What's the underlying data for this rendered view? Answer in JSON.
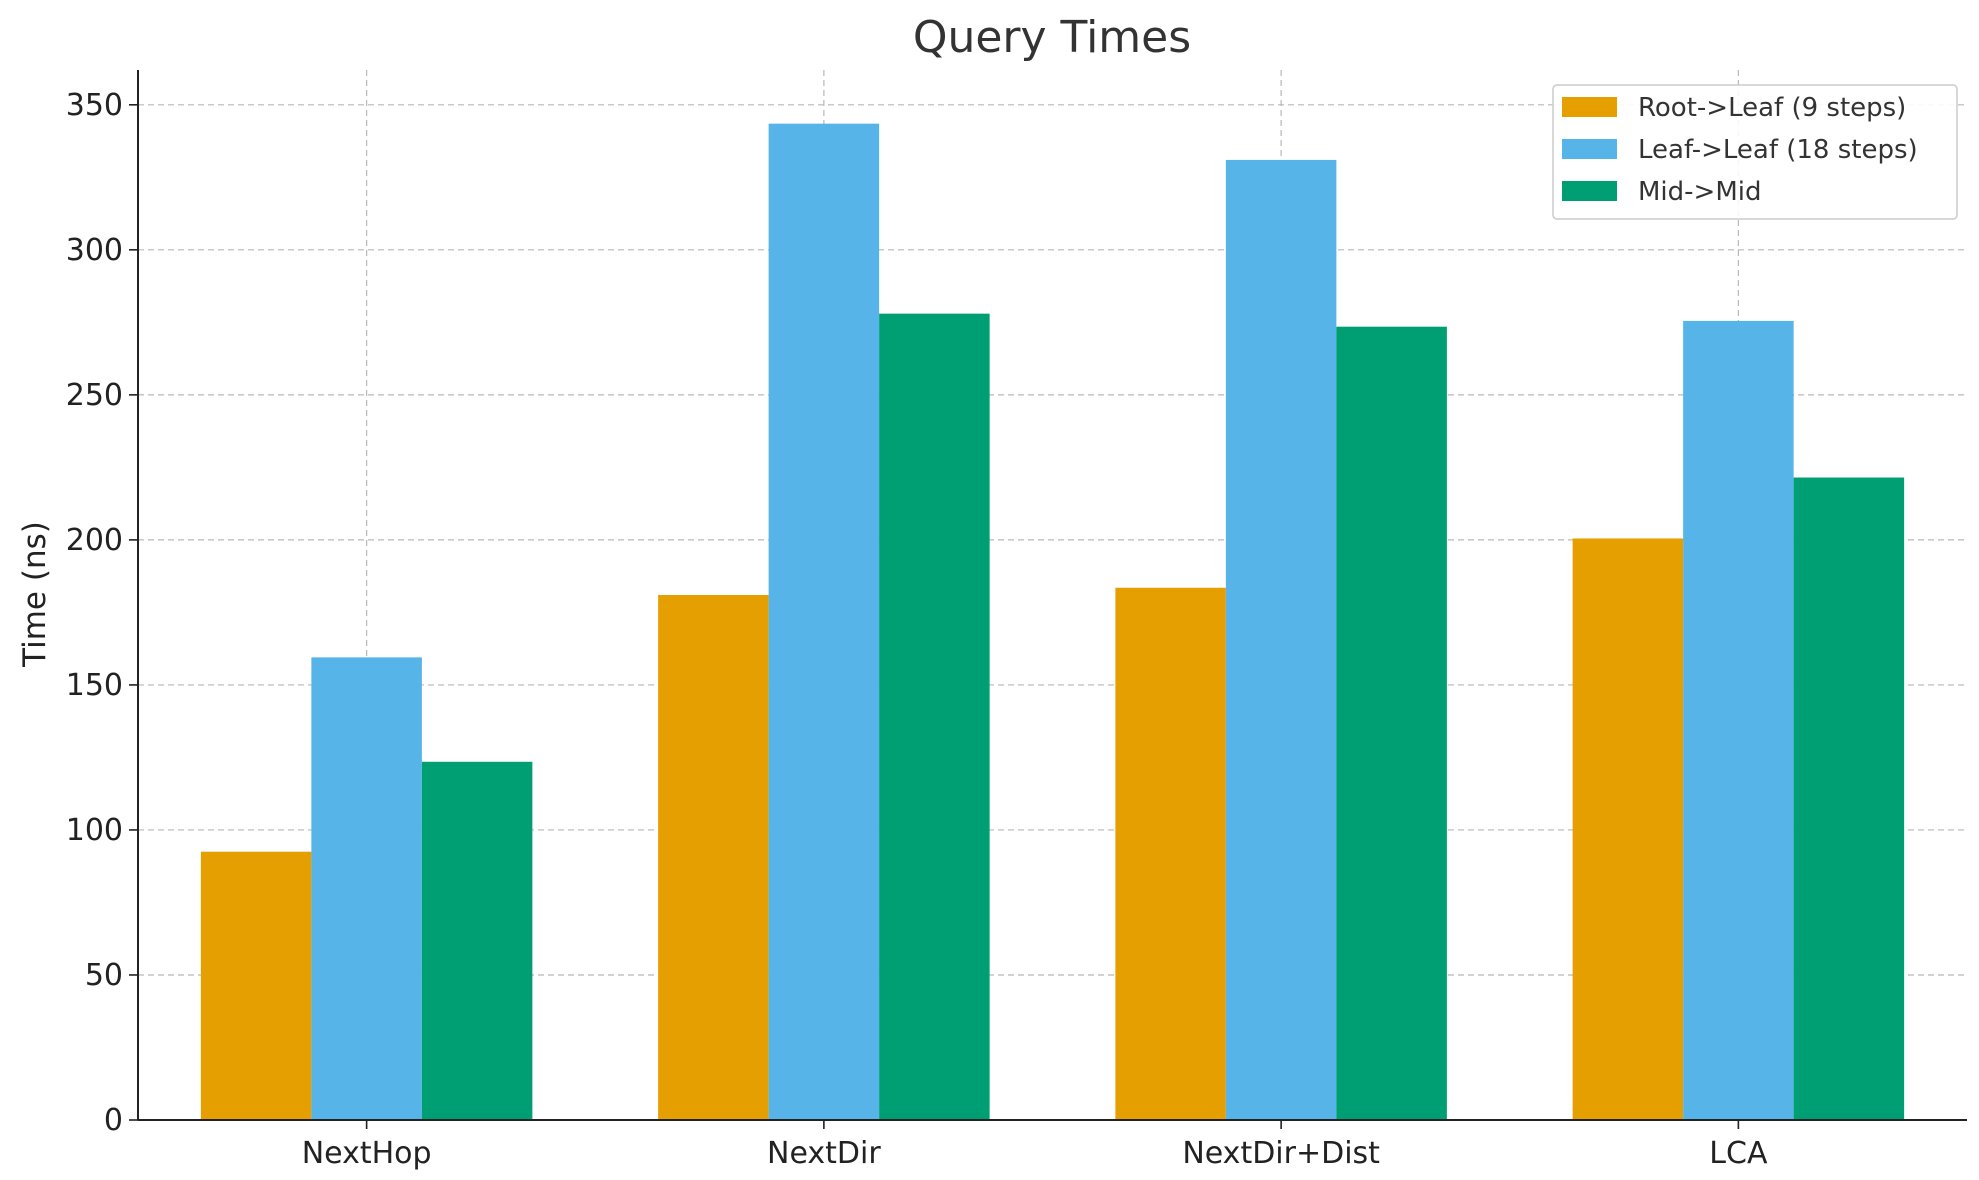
{
  "chart_data": {
    "type": "bar",
    "title": "Query Times",
    "xlabel": "",
    "ylabel": "Time (ns)",
    "categories": [
      "NextHop",
      "NextDir",
      "NextDir+Dist",
      "LCA"
    ],
    "series": [
      {
        "name": "Root->Leaf (9 steps)",
        "color": "#E69F00",
        "values": [
          92.5,
          181,
          183.5,
          200.5
        ]
      },
      {
        "name": "Leaf->Leaf (18 steps)",
        "color": "#56B4E9",
        "values": [
          159.5,
          343.5,
          331,
          275.5
        ]
      },
      {
        "name": "Mid->Mid",
        "color": "#009E73",
        "values": [
          123.5,
          278,
          273.5,
          221.5
        ]
      }
    ],
    "ylim": [
      0,
      362
    ],
    "yticks": [
      0,
      50,
      100,
      150,
      200,
      250,
      300,
      350
    ],
    "grid": true,
    "legend_position": "top-right"
  }
}
